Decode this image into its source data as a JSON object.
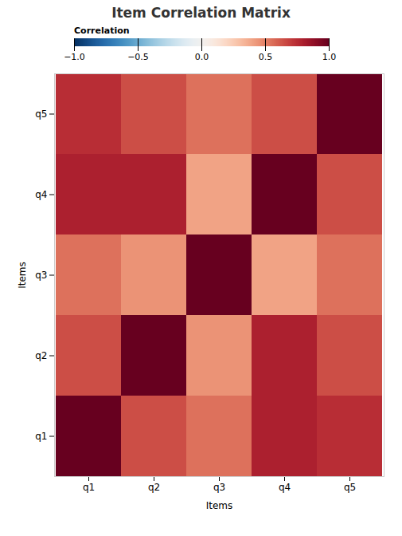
{
  "chart_data": {
    "type": "heatmap",
    "title": "Item Correlation Matrix",
    "xlabel": "Items",
    "ylabel": "Items",
    "categories": [
      "q1",
      "q2",
      "q3",
      "q4",
      "q5"
    ],
    "values": [
      [
        1.0,
        0.65,
        0.55,
        0.8,
        0.75
      ],
      [
        0.65,
        1.0,
        0.45,
        0.8,
        0.65
      ],
      [
        0.55,
        0.45,
        1.0,
        0.4,
        0.55
      ],
      [
        0.8,
        0.8,
        0.4,
        1.0,
        0.65
      ],
      [
        0.75,
        0.65,
        0.55,
        0.65,
        1.0
      ]
    ],
    "color": "RdBu_r",
    "colorbar_label": "Correlation",
    "colorbar_range": [
      -1.0,
      1.0
    ],
    "colorbar_ticks": [
      {
        "value": 1.0,
        "label": "1.0"
      },
      {
        "value": 0.5,
        "label": "0.5"
      },
      {
        "value": 0.0,
        "label": "0.0"
      },
      {
        "value": -0.5,
        "label": "−0.5"
      },
      {
        "value": -1.0,
        "label": "−1.0"
      }
    ]
  }
}
